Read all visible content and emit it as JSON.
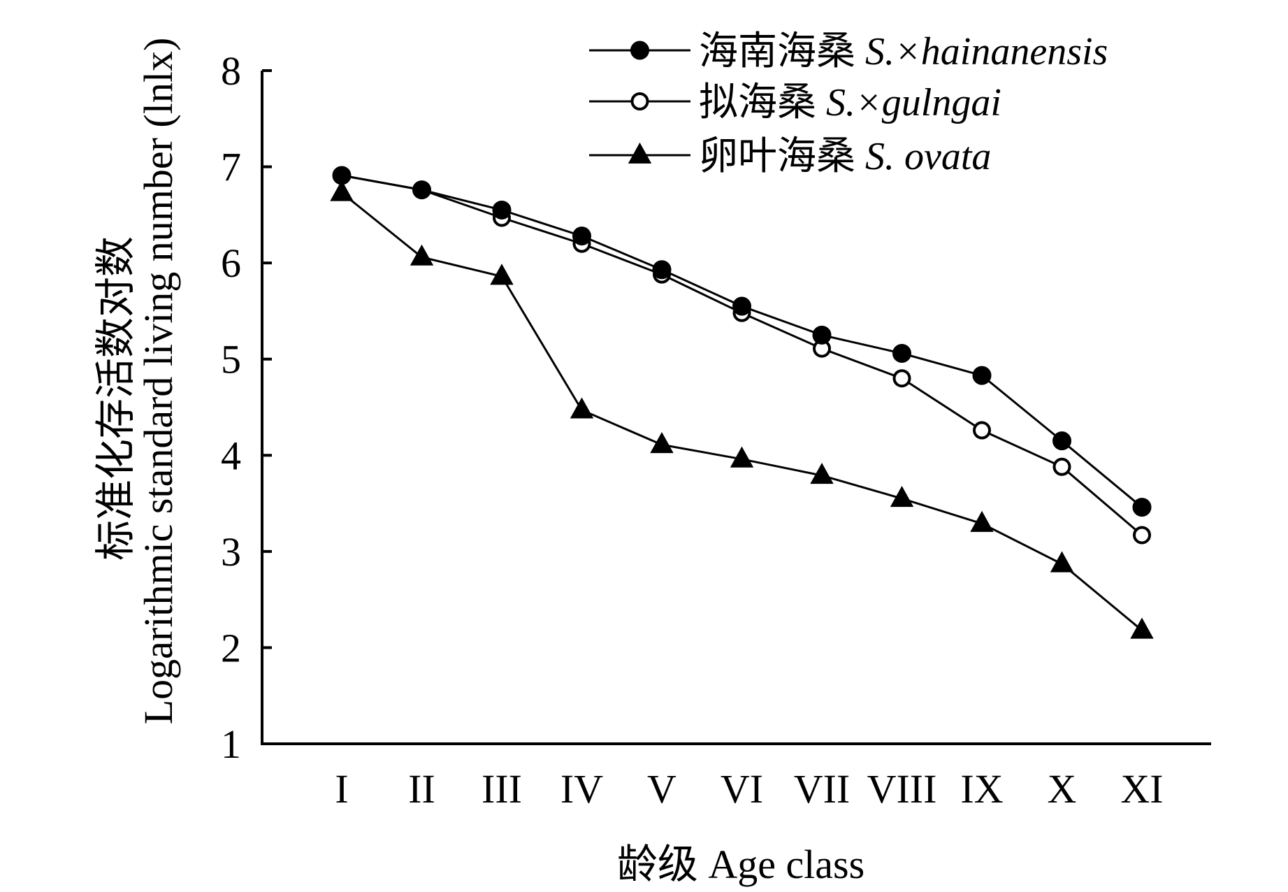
{
  "chart_data": {
    "type": "line",
    "xlabel": "龄级 Age class",
    "ylabel_line1": "标准化存活数对数",
    "ylabel_line2": "Logarithmic standard living number (lnlx)",
    "ylim": [
      1,
      8
    ],
    "yticks": [
      "1",
      "2",
      "3",
      "4",
      "5",
      "6",
      "7",
      "8"
    ],
    "categories": [
      "I",
      "II",
      "III",
      "IV",
      "V",
      "VI",
      "VII",
      "VIII",
      "IX",
      "X",
      "XI"
    ],
    "grid": false,
    "legend_position": "top-right",
    "series": [
      {
        "name": "海南海桑 S.×hainanensis",
        "name_cn": "海南海桑",
        "name_latin": "S.×hainanensis",
        "marker": "filled-circle",
        "values": [
          6.91,
          6.76,
          6.55,
          6.28,
          5.93,
          5.55,
          5.25,
          5.06,
          4.83,
          4.15,
          3.46
        ]
      },
      {
        "name": "拟海桑 S.×gulngai",
        "name_cn": "拟海桑",
        "name_latin": "S.×gulngai",
        "marker": "open-circle",
        "values": [
          6.91,
          6.76,
          6.47,
          6.2,
          5.88,
          5.48,
          5.11,
          4.8,
          4.26,
          3.88,
          3.17
        ]
      },
      {
        "name": "卵叶海桑 S. ovata",
        "name_cn": "卵叶海桑",
        "name_latin": "S. ovata",
        "marker": "filled-triangle",
        "values": [
          6.73,
          6.06,
          5.86,
          4.47,
          4.11,
          3.96,
          3.79,
          3.55,
          3.29,
          2.87,
          2.18
        ]
      }
    ]
  },
  "colors": {
    "ink": "#000000",
    "background": "#ffffff"
  }
}
